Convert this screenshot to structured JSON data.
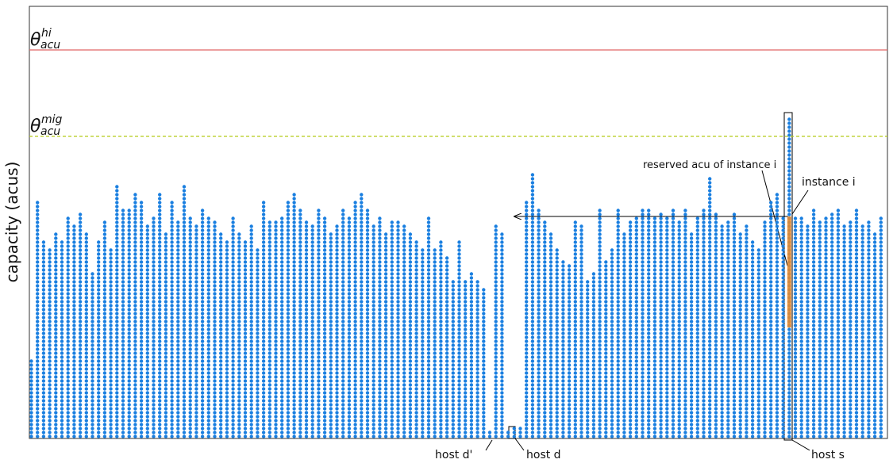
{
  "chart_data": {
    "type": "dotcolumn",
    "ylabel": "capacity (acus)",
    "ylim": [
      0,
      109
    ],
    "color": "#1a7fe0",
    "values": [
      20,
      60,
      50,
      48,
      52,
      50,
      56,
      54,
      57,
      52,
      42,
      50,
      55,
      48,
      64,
      58,
      58,
      62,
      60,
      54,
      56,
      62,
      52,
      60,
      55,
      64,
      56,
      54,
      58,
      56,
      55,
      52,
      50,
      56,
      52,
      50,
      54,
      48,
      60,
      55,
      55,
      56,
      60,
      62,
      58,
      55,
      54,
      58,
      56,
      52,
      54,
      58,
      56,
      60,
      62,
      58,
      54,
      56,
      52,
      55,
      55,
      54,
      52,
      50,
      48,
      56,
      48,
      50,
      46,
      40,
      50,
      40,
      42,
      40,
      38,
      2,
      54,
      52,
      2,
      3,
      3,
      60,
      67,
      58,
      55,
      52,
      48,
      45,
      44,
      55,
      54,
      40,
      42,
      58,
      45,
      48,
      58,
      52,
      55,
      56,
      58,
      58,
      56,
      57,
      56,
      58,
      55,
      58,
      52,
      56,
      58,
      66,
      57,
      54,
      55,
      57,
      52,
      54,
      50,
      48,
      55,
      60,
      62,
      56,
      81,
      56,
      56,
      54,
      58,
      55,
      56,
      57,
      58,
      54,
      55,
      58,
      54,
      55,
      52,
      56
    ],
    "thresholds": [
      {
        "symbol": "θ",
        "sup": "hi",
        "sub": "acu",
        "value": 98,
        "color": "#e06666",
        "dashed": false
      },
      {
        "symbol": "θ",
        "sup": "mig",
        "sub": "acu",
        "value": 76.2,
        "color": "#b5cc18",
        "dashed": true
      }
    ],
    "instance": {
      "host": 124,
      "start": 28,
      "size": 28,
      "color": "#f08a24"
    },
    "annotations": {
      "reserved": "reserved acu of instance i",
      "instance": "instance i",
      "host_d_prime": "host d'",
      "host_d": "host d",
      "host_s": "host s"
    }
  }
}
